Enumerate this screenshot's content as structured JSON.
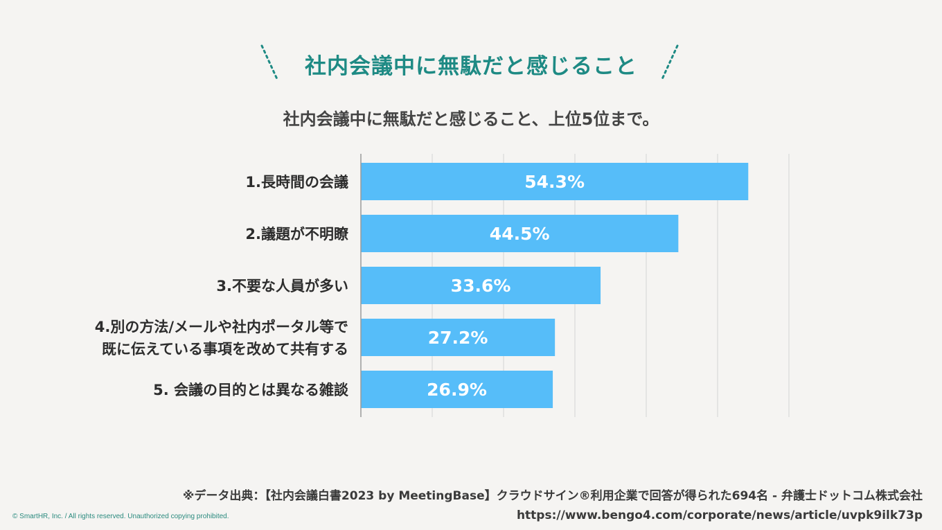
{
  "heading": "社内会議中に無駄だと感じること",
  "subtitle": "社内会議中に無駄だと感じること、上位5位まで。",
  "colors": {
    "accent": "#1e8a84",
    "bar": "#56bdf9",
    "grid": "#d4d4d4",
    "axis": "#9a9a9a"
  },
  "chart_data": {
    "type": "bar",
    "orientation": "horizontal",
    "categories": [
      [
        "1.長時間の会議"
      ],
      [
        "2.議題が不明瞭"
      ],
      [
        "3.不要な人員が多い"
      ],
      [
        "4.別の方法/メールや社内ポータル等で",
        "既に伝えている事項を改めて共有する"
      ],
      [
        "5. 会議の目的とは異なる雑談"
      ]
    ],
    "values": [
      54.3,
      44.5,
      33.6,
      27.2,
      26.9
    ],
    "value_labels": [
      "54.3%",
      "44.5%",
      "33.6%",
      "27.2%",
      "26.9%"
    ],
    "xlim": [
      0,
      60
    ],
    "grid": true,
    "title": "社内会議中に無駄だと感じること、上位5位まで。"
  },
  "source_line1": "※データ出典：【社内会議白書2023 by MeetingBase】クラウドサイン®利用企業で回答が得られた694名 - 弁護士ドットコム株式会社",
  "source_line2": "https://www.bengo4.com/corporate/news/article/uvpk9ilk73p",
  "copyright": "© SmartHR, Inc. / All rights reserved. Unauthorized copying prohibited."
}
